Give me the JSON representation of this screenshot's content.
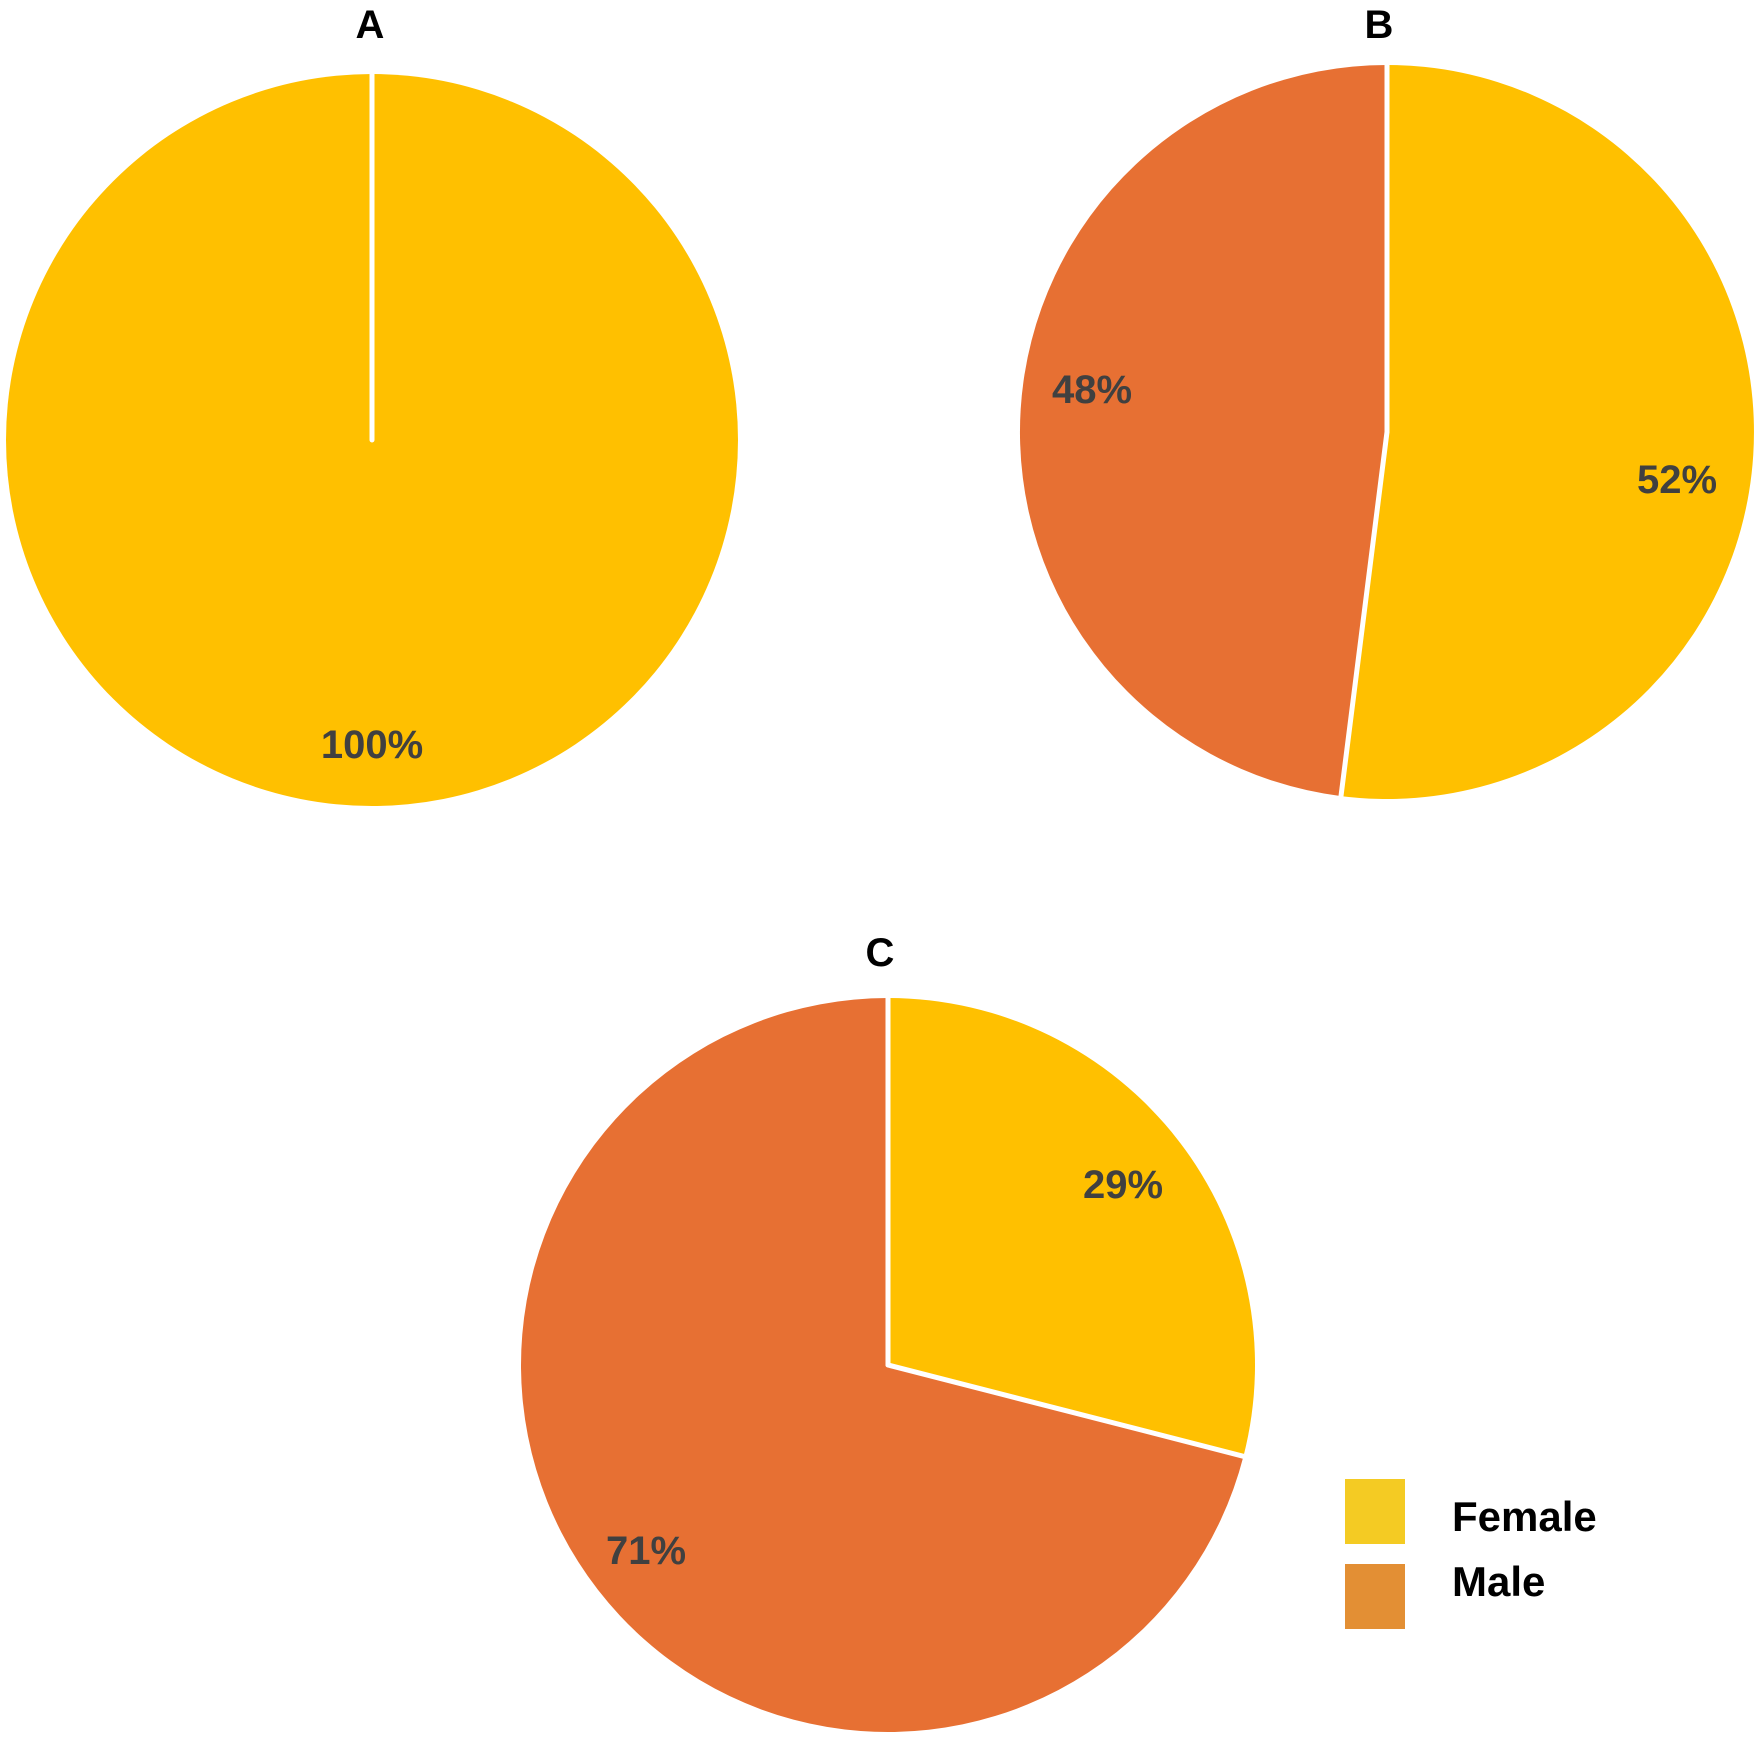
{
  "chart_data": [
    {
      "type": "pie",
      "title": "A",
      "categories": [
        "Female",
        "Male"
      ],
      "values": [
        100,
        0
      ],
      "labels": [
        "100%",
        ""
      ]
    },
    {
      "type": "pie",
      "title": "B",
      "categories": [
        "Female",
        "Male"
      ],
      "values": [
        52,
        48
      ],
      "labels": [
        "52%",
        "48%"
      ]
    },
    {
      "type": "pie",
      "title": "C",
      "categories": [
        "Female",
        "Male"
      ],
      "values": [
        29,
        71
      ],
      "labels": [
        "29%",
        "71%"
      ]
    }
  ],
  "colors": {
    "Female": "#FFC000",
    "Male": "#E77033",
    "legend_female": "#F4CB23",
    "legend_male": "#E38F34",
    "label_text": "#404040",
    "separator": "#FFFFFF"
  },
  "legend": {
    "placement": "bottom-right",
    "items": [
      {
        "label": "Female",
        "color": "#F4CB23"
      },
      {
        "label": "Male",
        "color": "#E38F34"
      }
    ]
  }
}
